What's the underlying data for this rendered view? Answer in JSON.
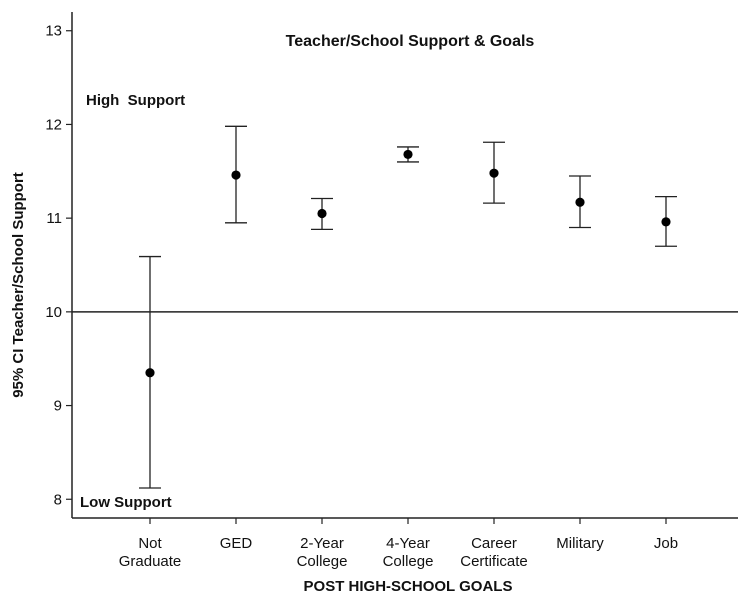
{
  "chart_data": {
    "type": "errorbar",
    "title": "Teacher/School Support & Goals",
    "xlabel": "POST HIGH-SCHOOL GOALS",
    "ylabel": "95% CI Teacher/School Support",
    "ylim": [
      7.8,
      13.2
    ],
    "yticks": [
      "8",
      "9",
      "10",
      "11",
      "12",
      "13"
    ],
    "reference_line": 10,
    "annotations": {
      "high": "High  Support",
      "low": "Low Support"
    },
    "categories": [
      [
        "Not",
        "Graduate"
      ],
      [
        "GED"
      ],
      [
        "2-Year",
        "College"
      ],
      [
        "4-Year",
        "College"
      ],
      [
        "Career",
        "Certificate"
      ],
      [
        "Military"
      ],
      [
        "Job"
      ]
    ],
    "series": [
      {
        "means": [
          9.35,
          11.46,
          11.05,
          11.68,
          11.48,
          11.17,
          10.96
        ],
        "lower": [
          8.12,
          10.95,
          10.88,
          11.6,
          11.16,
          10.9,
          10.7
        ],
        "upper": [
          10.59,
          11.98,
          11.21,
          11.76,
          11.81,
          11.45,
          11.23
        ]
      }
    ]
  }
}
